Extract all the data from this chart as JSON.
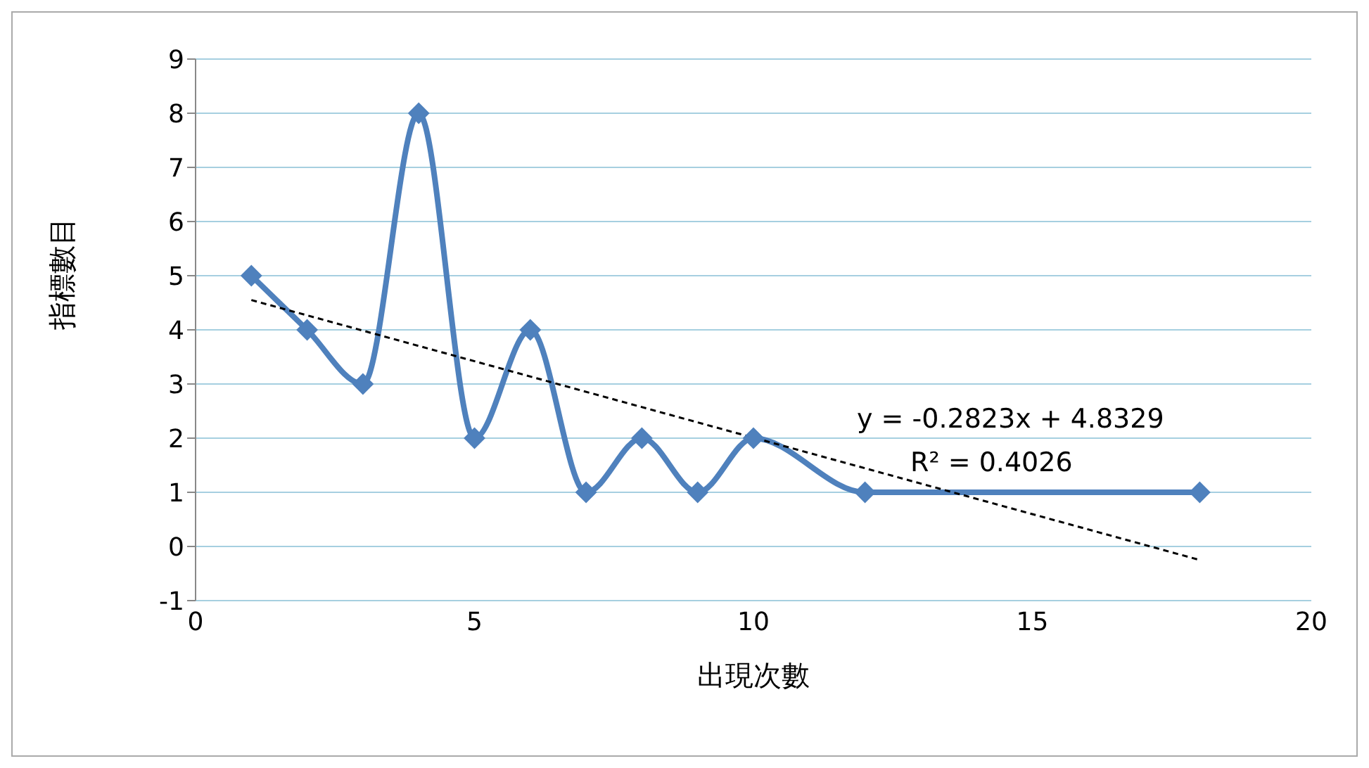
{
  "chart_data": {
    "type": "line",
    "xlabel": "出現次數",
    "ylabel": "指標數目",
    "xlim": [
      0,
      20
    ],
    "xticks": [
      0,
      5,
      10,
      15,
      20
    ],
    "ylim": [
      -1,
      9
    ],
    "yticks": [
      -1,
      0,
      1,
      2,
      3,
      4,
      5,
      6,
      7,
      8,
      9
    ],
    "grid": "y",
    "legend": false,
    "series": [
      {
        "type": "line",
        "color": "#4f81bd",
        "marker": "diamond",
        "line_style": "solid",
        "x": [
          1,
          2,
          3,
          4,
          5,
          6,
          7,
          8,
          9,
          10,
          12,
          18
        ],
        "values": [
          5,
          4,
          3,
          8,
          2,
          4,
          1,
          2,
          1,
          2,
          1,
          1
        ]
      },
      {
        "type": "line",
        "color": "#000000",
        "marker": "none",
        "line_style": "dashed",
        "x": [
          1,
          18
        ],
        "values": [
          4.55,
          -0.25
        ]
      }
    ],
    "annotations": [
      "y = -0.2823x + 4.8329",
      "R² = 0.4026"
    ]
  }
}
